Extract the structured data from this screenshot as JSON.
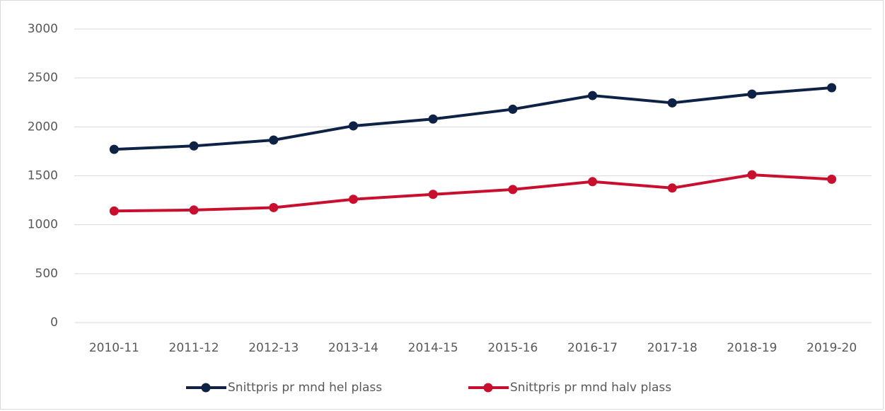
{
  "chart_data": {
    "type": "line",
    "categories": [
      "2010-11",
      "2011-12",
      "2012-13",
      "2013-14",
      "2014-15",
      "2015-16",
      "2016-17",
      "2017-18",
      "2018-19",
      "2019-20"
    ],
    "series": [
      {
        "name": "Snittpris pr mnd hel plass",
        "color": "#0d2244",
        "values": [
          1770,
          1805,
          1865,
          2010,
          2080,
          2180,
          2320,
          2245,
          2335,
          2400
        ]
      },
      {
        "name": "Snittpris pr mnd halv plass",
        "color": "#c8102e",
        "values": [
          1140,
          1150,
          1175,
          1260,
          1310,
          1360,
          1440,
          1375,
          1510,
          1465
        ]
      }
    ],
    "ylim": [
      0,
      3000
    ],
    "yticks": [
      0,
      500,
      1000,
      1500,
      2000,
      2500,
      3000
    ],
    "grid": true,
    "legend": "bottom"
  }
}
